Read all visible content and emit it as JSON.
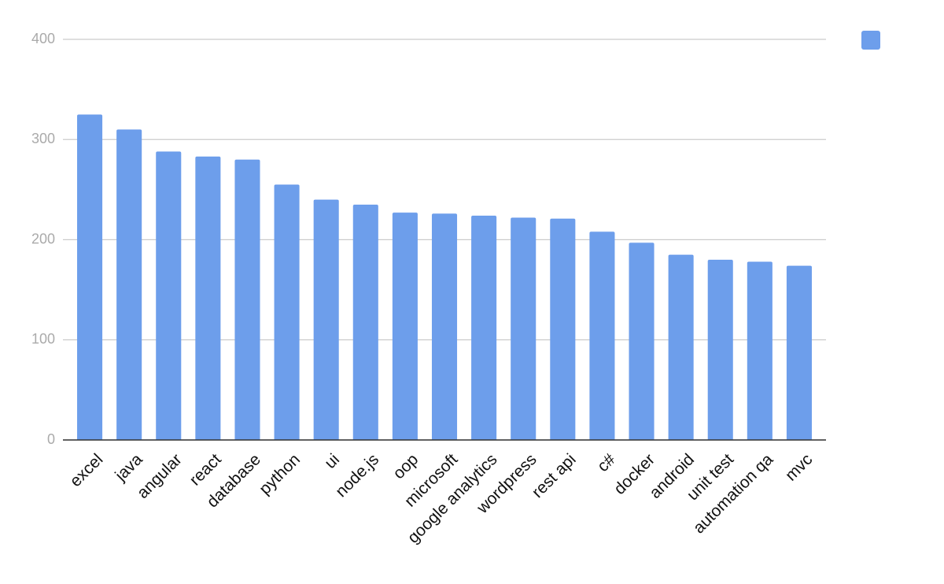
{
  "chart_data": {
    "type": "bar",
    "categories": [
      "excel",
      "java",
      "angular",
      "react",
      "database",
      "python",
      "ui",
      "node.js",
      "oop",
      "microsoft",
      "google analytics",
      "wordpress",
      "rest api",
      "c#",
      "docker",
      "android",
      "unit test",
      "automation qa",
      "mvc"
    ],
    "values": [
      325,
      310,
      288,
      283,
      280,
      255,
      240,
      235,
      227,
      226,
      224,
      222,
      221,
      208,
      197,
      185,
      180,
      178,
      174
    ],
    "color": "#6d9eeb",
    "ylim": [
      0,
      400
    ],
    "yticks": [
      0,
      100,
      200,
      300,
      400
    ],
    "grid": true,
    "legend": "top-right"
  }
}
